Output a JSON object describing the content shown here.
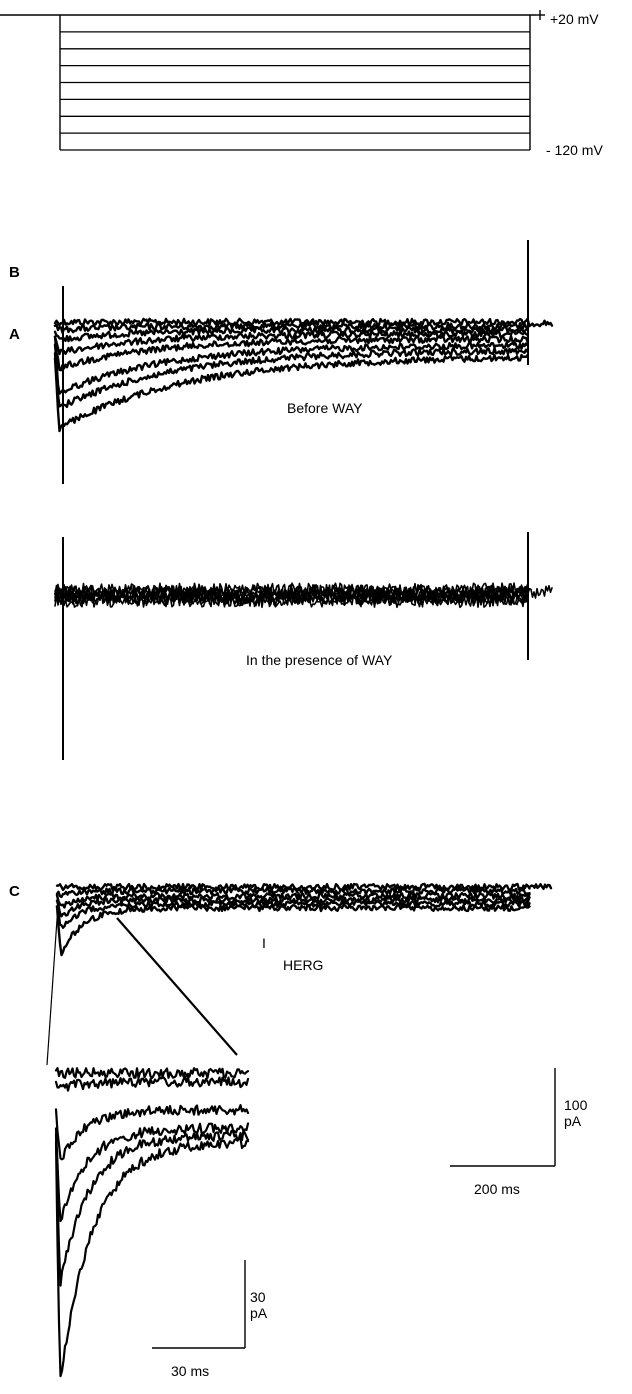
{
  "protocol": {
    "top_label": "+20 mV",
    "bottom_label": "- 120 mV",
    "step_count": 8
  },
  "panels": {
    "a": {
      "letter": "A",
      "caption": "Before WAY"
    },
    "b": {
      "letter": "B",
      "caption": "In the presence of WAY"
    },
    "c": {
      "letter": "C",
      "current_symbol": "I",
      "current_subscript": "HERG"
    }
  },
  "scale_bars": {
    "main": {
      "current": "100 pA",
      "current_line1": "100",
      "current_line2": "pA",
      "time": "200 ms"
    },
    "inset": {
      "current": "30 pA",
      "current_line1": "30",
      "current_line2": "pA",
      "time": "30 ms"
    }
  },
  "colors": {
    "trace": "#000000",
    "background": "#ffffff"
  }
}
